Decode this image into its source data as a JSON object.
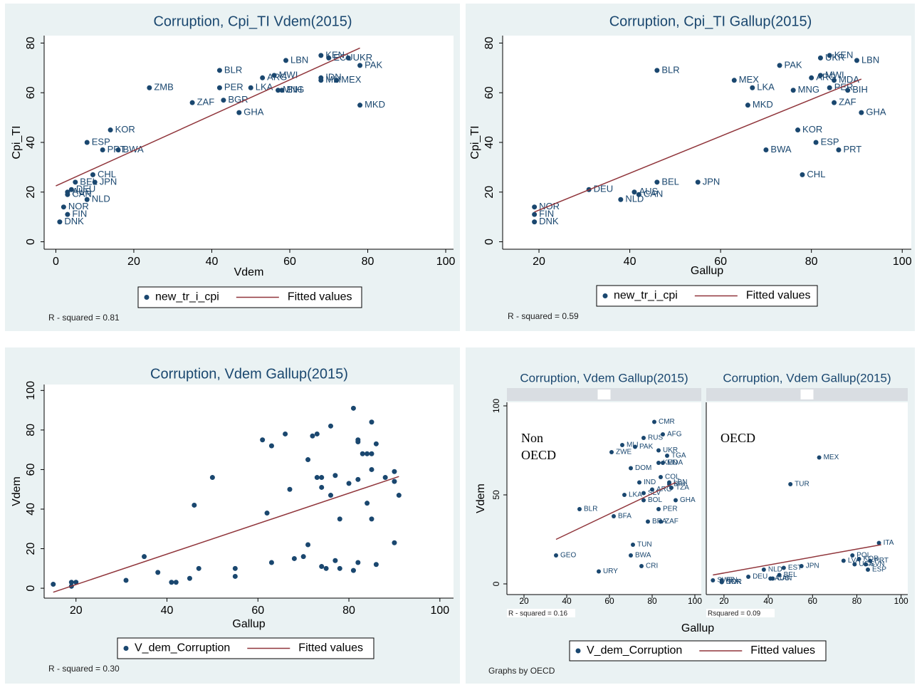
{
  "chart_data": [
    {
      "type": "scatter",
      "title": "Corruption, Cpi_TI Vdem(2015)",
      "x_label": "Vdem",
      "y_label": "Cpi_TI",
      "xlim": [
        -3,
        102
      ],
      "ylim": [
        -3,
        83
      ],
      "xticks": [
        0,
        20,
        40,
        60,
        80,
        100
      ],
      "yticks": [
        0,
        20,
        40,
        60,
        80
      ],
      "note": "R - squared = 0.81",
      "series": [
        {
          "name": "new_tr_i_cpi",
          "type": "scatter",
          "color": "#1a476f",
          "x": [
            1,
            3,
            2,
            8,
            3,
            3,
            4,
            5,
            10,
            9.5,
            12,
            16,
            8,
            14,
            35,
            43,
            47,
            24,
            42,
            42,
            50,
            53,
            56,
            57,
            58,
            59,
            68,
            68,
            68,
            72,
            75,
            70,
            78,
            78
          ],
          "values": [
            8,
            11,
            14,
            17,
            19,
            20,
            21,
            24,
            24,
            27,
            37,
            37,
            40,
            45,
            56,
            57,
            52,
            62,
            62,
            69,
            62,
            66,
            67,
            61,
            61,
            73,
            75,
            66,
            65,
            65,
            74,
            74,
            71,
            55
          ],
          "labels": [
            "DNK",
            "FIN",
            "NOR",
            "NLD",
            "CAN",
            "AUS",
            "DEU",
            "BEL",
            "JPN",
            "CHL",
            "PRT",
            "BWA",
            "ESP",
            "KOR",
            "ZAF",
            "BGR",
            "GHA",
            "ZMB",
            "PER",
            "BLR",
            "LKA",
            "ARG",
            "MWI",
            "MNG",
            "BIH",
            "LBN",
            "KEN",
            "IDN",
            "MLI",
            "MEX",
            "UKR",
            "ECU",
            "PAK",
            "MKD"
          ]
        },
        {
          "name": "Fitted values",
          "type": "line",
          "color": "#90353b",
          "x": [
            0,
            78
          ],
          "values": [
            22.5,
            78
          ]
        }
      ]
    },
    {
      "type": "scatter",
      "title": "Corruption, Cpi_TI Gallup(2015)",
      "x_label": "Gallup",
      "y_label": "Cpi_TI",
      "xlim": [
        12,
        102
      ],
      "ylim": [
        -3,
        83
      ],
      "xticks": [
        20,
        40,
        60,
        80,
        100
      ],
      "yticks": [
        0,
        20,
        40,
        60,
        80
      ],
      "note": "R - squared = 0.59",
      "series": [
        {
          "name": "new_tr_i_cpi",
          "type": "scatter",
          "color": "#1a476f",
          "x": [
            19,
            19,
            19,
            31,
            38,
            41,
            42,
            46,
            55,
            46,
            63,
            67,
            66,
            73,
            76,
            77,
            70,
            81,
            78,
            86,
            85,
            91,
            84,
            88,
            80,
            82,
            85,
            82,
            84,
            90
          ],
          "values": [
            8,
            11,
            14,
            21,
            17,
            20,
            19,
            24,
            24,
            69,
            65,
            62,
            55,
            71,
            61,
            45,
            37,
            40,
            27,
            37,
            56,
            52,
            62,
            61,
            66,
            67,
            65,
            74,
            75,
            73
          ],
          "labels": [
            "DNK",
            "FIN",
            "NOR",
            "DEU",
            "NLD",
            "AUS",
            "CAN",
            "BEL",
            "JPN",
            "BLR",
            "MEX",
            "LKA",
            "MKD",
            "PAK",
            "MNG",
            "KOR",
            "BWA",
            "ESP",
            "CHL",
            "PRT",
            "ZAF",
            "GHA",
            "PER",
            "BIH",
            "ARG",
            "MWI",
            "MDA",
            "UKR",
            "KEN",
            "LBN"
          ]
        },
        {
          "name": "Fitted values",
          "type": "line",
          "color": "#90353b",
          "x": [
            19,
            91
          ],
          "values": [
            12,
            65.5
          ]
        }
      ]
    },
    {
      "type": "scatter",
      "title": "Corruption, Vdem Gallup(2015)",
      "x_label": "Gallup",
      "y_label": "Vdem",
      "xlim": [
        13,
        103
      ],
      "ylim": [
        -5,
        103
      ],
      "xticks": [
        20,
        40,
        60,
        80,
        100
      ],
      "yticks": [
        0,
        20,
        40,
        60,
        80,
        100
      ],
      "note": "R - squared = 0.30",
      "series": [
        {
          "name": "V_dem_Corruption",
          "type": "scatter",
          "color": "#1a476f",
          "x": [
            15,
            19,
            19,
            20,
            31,
            35,
            38,
            41,
            42,
            45,
            46,
            47,
            50,
            55,
            55,
            61,
            62,
            63,
            63,
            66,
            67,
            68,
            70,
            71,
            71,
            72,
            73,
            73,
            74,
            74,
            74,
            75,
            76,
            76,
            77,
            77,
            78,
            78,
            80,
            81,
            81,
            82,
            82,
            82,
            82,
            83,
            84,
            84,
            85,
            85,
            85,
            85,
            86,
            86,
            88,
            90,
            90,
            90,
            91
          ],
          "values": [
            2,
            1,
            3,
            3,
            4,
            16,
            8,
            3,
            3,
            5,
            42,
            10,
            56,
            6,
            10,
            75,
            38,
            72,
            13,
            78,
            50,
            15,
            16,
            65,
            22,
            77,
            78,
            56,
            56,
            51,
            11,
            10,
            47,
            82,
            57,
            14,
            35,
            10,
            53,
            91,
            9,
            75,
            74,
            55,
            13,
            68,
            68,
            43,
            68,
            84,
            60,
            35,
            73,
            12,
            56,
            59,
            54,
            23,
            47
          ]
        },
        {
          "name": "Fitted values",
          "type": "line",
          "color": "#90353b",
          "x": [
            15,
            91
          ],
          "values": [
            -2,
            56.5
          ]
        }
      ]
    },
    {
      "type": "scatter",
      "x_label": "Gallup",
      "y_label": "Vdem",
      "xlim": [
        12,
        103
      ],
      "ylim": [
        -6,
        102
      ],
      "xticks": [
        20,
        40,
        60,
        80,
        100
      ],
      "yticks": [
        0,
        50,
        100
      ],
      "note": "Graphs by OECD",
      "panels": [
        {
          "title": "Corruption, Vdem Gallup(2015)",
          "annotation": "Non OECD",
          "note": "R - squared = 0.16",
          "series": [
            {
              "name": "V_dem_Corruption",
              "type": "scatter",
              "color": "#1a476f",
              "x": [
                81,
                85,
                76,
                66,
                72,
                61,
                83,
                87,
                85,
                83,
                70,
                88,
                84,
                88,
                80,
                74,
                89,
                76,
                67,
                76,
                91,
                83,
                46,
                62,
                78,
                84,
                71,
                70,
                35,
                75,
                55
              ],
              "values": [
                91,
                84,
                82,
                78,
                77,
                74,
                75,
                72,
                68,
                68,
                65,
                57,
                60,
                56,
                53,
                57,
                54,
                51,
                50,
                47,
                47,
                42,
                42,
                38,
                35,
                35,
                22,
                16,
                16,
                10,
                7
              ],
              "labels": [
                "CMR",
                "AFG",
                "RUS",
                "MLI",
                "PAK",
                "ZWE",
                "UKR",
                "TGA",
                "MDA",
                "KEN",
                "DOM",
                "LBN",
                "COL",
                "BIH",
                "ARG",
                "IND",
                "TZA",
                "SLV",
                "LKA",
                "BOL",
                "GHA",
                "PER",
                "BLR",
                "BFA",
                "BRA",
                "ZAF",
                "TUN",
                "BWA",
                "GEO",
                "CRI",
                "URY"
              ]
            },
            {
              "name": "Fitted values",
              "type": "line",
              "color": "#90353b",
              "x": [
                35,
                91
              ],
              "values": [
                25,
                57
              ]
            }
          ]
        },
        {
          "title": "Corruption, Vdem Gallup(2015)",
          "annotation": "OECD",
          "note": "Rsquared = 0.09",
          "series": [
            {
              "name": "V_dem_Corruption",
              "type": "scatter",
              "color": "#1a476f",
              "x": [
                63,
                50,
                90,
                78,
                81,
                86,
                74,
                84,
                55,
                85,
                79,
                47,
                38,
                45,
                31,
                41,
                42,
                19,
                19,
                19,
                15
              ],
              "values": [
                71,
                56,
                23,
                16,
                14,
                13,
                13,
                11,
                10,
                8,
                11,
                9,
                8,
                5,
                4,
                3,
                3,
                2,
                1,
                1,
                2
              ],
              "labels": [
                "MEX",
                "TUR",
                "ITA",
                "POL",
                "KOR",
                "PRT",
                "LVA",
                "SVN",
                "JPN",
                "ESP",
                "USA",
                "EST",
                "NLD",
                "BEL",
                "DEU",
                "AUS",
                "CAN",
                "FIN",
                "NOR",
                "DNK",
                "SWE"
              ]
            },
            {
              "name": "Fitted values",
              "type": "line",
              "color": "#90353b",
              "x": [
                15,
                91
              ],
              "values": [
                5,
                22
              ]
            }
          ]
        }
      ]
    }
  ]
}
